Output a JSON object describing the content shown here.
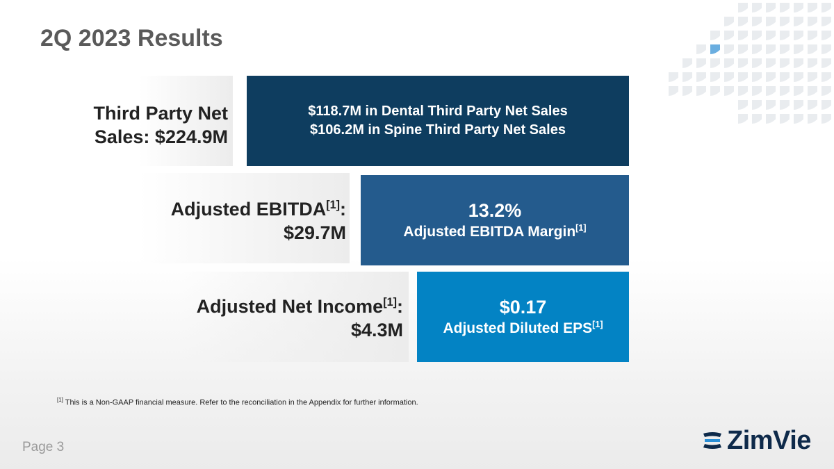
{
  "slide": {
    "title": "2Q 2023 Results",
    "page_label": "Page 3"
  },
  "rows": [
    {
      "label_line1": "Third Party Net",
      "label_line2": "Sales: $224.9M",
      "box_line1": "$118.7M in Dental Third Party Net Sales",
      "box_line2": "$106.2M in Spine Third Party Net Sales"
    },
    {
      "label_line1": "Adjusted EBITDA",
      "label_sup": "[1]",
      "label_colon": ":",
      "label_line2": "$29.7M",
      "box_value": "13.2%",
      "box_caption": "Adjusted EBITDA Margin",
      "box_sup": "[1]"
    },
    {
      "label_line1": "Adjusted Net Income",
      "label_sup": "[1]",
      "label_colon": ":",
      "label_line2": "$4.3M",
      "box_value": "$0.17",
      "box_caption": "Adjusted Diluted EPS",
      "box_sup": "[1]"
    }
  ],
  "footnote": {
    "marker": "[1]",
    "text": " This is a Non-GAAP financial measure. Refer to the reconciliation in the Appendix for further information."
  },
  "logo": {
    "name": "ZimVie"
  },
  "colors": {
    "navy": "#0e3d5f",
    "mid_blue": "#245b8d",
    "bright_blue": "#0383c4"
  }
}
